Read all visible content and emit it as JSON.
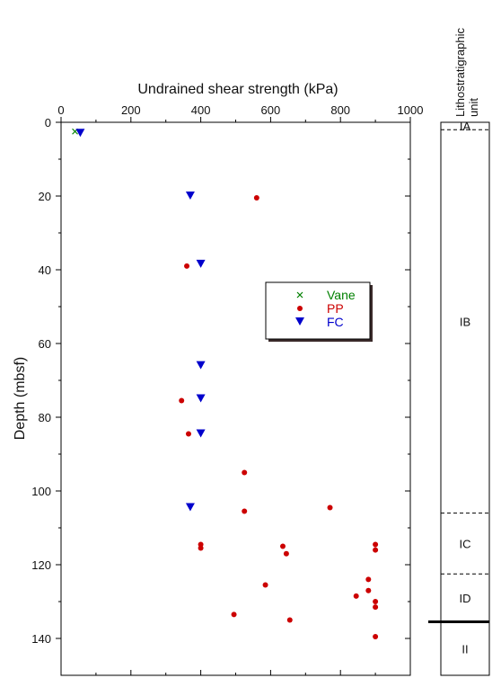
{
  "chart_data": {
    "type": "scatter",
    "title": "",
    "xlabel": "Undrained shear strength (kPa)",
    "ylabel": "Depth (mbsf)",
    "xlim": [
      0,
      1000
    ],
    "ylim": [
      0,
      150
    ],
    "y_inverted": true,
    "x_axis_position": "top",
    "xticks": [
      0,
      200,
      400,
      600,
      800,
      1000
    ],
    "yticks": [
      0,
      20,
      40,
      60,
      80,
      100,
      120,
      140
    ],
    "grid": false,
    "legend_position": "upper-right-center",
    "series": [
      {
        "name": "Vane",
        "marker": "x",
        "color": "#008000",
        "points": [
          [
            40,
            2.5
          ]
        ]
      },
      {
        "name": "PP",
        "marker": "circle",
        "color": "#cc0000",
        "points": [
          [
            560,
            20.5
          ],
          [
            360,
            39
          ],
          [
            345,
            75.5
          ],
          [
            365,
            84.5
          ],
          [
            525,
            95
          ],
          [
            770,
            104.5
          ],
          [
            525,
            105.5
          ],
          [
            400,
            114.5
          ],
          [
            400,
            115.5
          ],
          [
            635,
            115
          ],
          [
            645,
            117
          ],
          [
            900,
            114.5
          ],
          [
            900,
            116
          ],
          [
            585,
            125.5
          ],
          [
            880,
            124
          ],
          [
            880,
            127
          ],
          [
            845,
            128.5
          ],
          [
            900,
            130
          ],
          [
            900,
            131.5
          ],
          [
            495,
            133.5
          ],
          [
            655,
            135
          ],
          [
            900,
            139.5
          ]
        ]
      },
      {
        "name": "FC",
        "marker": "triangle-down",
        "color": "#0000cc",
        "points": [
          [
            55,
            3
          ],
          [
            370,
            20
          ],
          [
            400,
            38.5
          ],
          [
            400,
            66
          ],
          [
            400,
            75
          ],
          [
            400,
            84.5
          ],
          [
            370,
            104.5
          ]
        ]
      }
    ],
    "lithology": {
      "title_lines": [
        "Lithostratigraphic",
        "unit"
      ],
      "units": [
        {
          "label": "IA",
          "top": 0,
          "bottom": 2
        },
        {
          "label": "IB",
          "top": 2,
          "bottom": 106
        },
        {
          "label": "IC",
          "top": 106,
          "bottom": 122.5
        },
        {
          "label": "ID",
          "top": 122.5,
          "bottom": 135.5
        },
        {
          "label": "II",
          "top": 135.5,
          "bottom": 150
        }
      ],
      "boundaries": [
        {
          "depth": 2,
          "style": "dashed"
        },
        {
          "depth": 106,
          "style": "dashed"
        },
        {
          "depth": 122.5,
          "style": "dashed"
        },
        {
          "depth": 135.5,
          "style": "solid-thick"
        }
      ]
    }
  }
}
